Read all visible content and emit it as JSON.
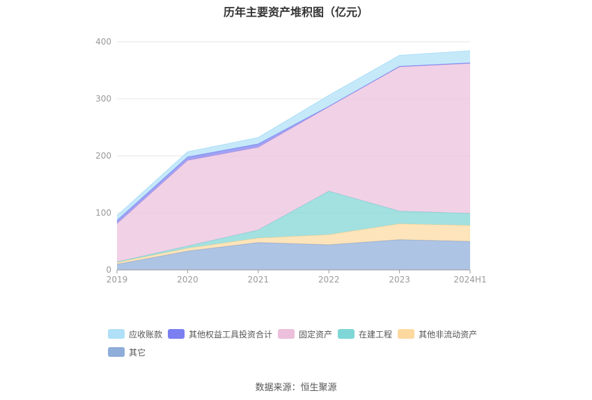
{
  "title": "历年主要资产堆积图（亿元）",
  "source": "数据来源：恒生聚源",
  "chart_data": {
    "type": "area",
    "stacked": true,
    "categories": [
      "2019",
      "2020",
      "2021",
      "2022",
      "2023",
      "2024H1"
    ],
    "ylim": [
      0,
      400
    ],
    "yticks": [
      0,
      100,
      200,
      300,
      400
    ],
    "grid": true,
    "legend_position": "bottom",
    "series": [
      {
        "name": "其它",
        "color": "#8fadd9",
        "values": [
          10,
          33,
          48,
          44,
          53,
          50
        ]
      },
      {
        "name": "其他非流动资产",
        "color": "#fdd9a0",
        "values": [
          3,
          5,
          8,
          18,
          28,
          28
        ]
      },
      {
        "name": "在建工程",
        "color": "#7fd6d6",
        "values": [
          1,
          4,
          14,
          76,
          22,
          21
        ]
      },
      {
        "name": "固定资产",
        "color": "#ecbfdc",
        "values": [
          67,
          150,
          145,
          148,
          253,
          263
        ]
      },
      {
        "name": "其他权益工具投资合计",
        "color": "#7b7ff0",
        "values": [
          6,
          6,
          6,
          1,
          1,
          1
        ]
      },
      {
        "name": "应收账款",
        "color": "#b0e0f8",
        "values": [
          8,
          9,
          11,
          19,
          19,
          21
        ]
      }
    ],
    "legend_order": [
      "应收账款",
      "其他权益工具投资合计",
      "固定资产",
      "在建工程",
      "其他非流动资产",
      "其它"
    ]
  }
}
